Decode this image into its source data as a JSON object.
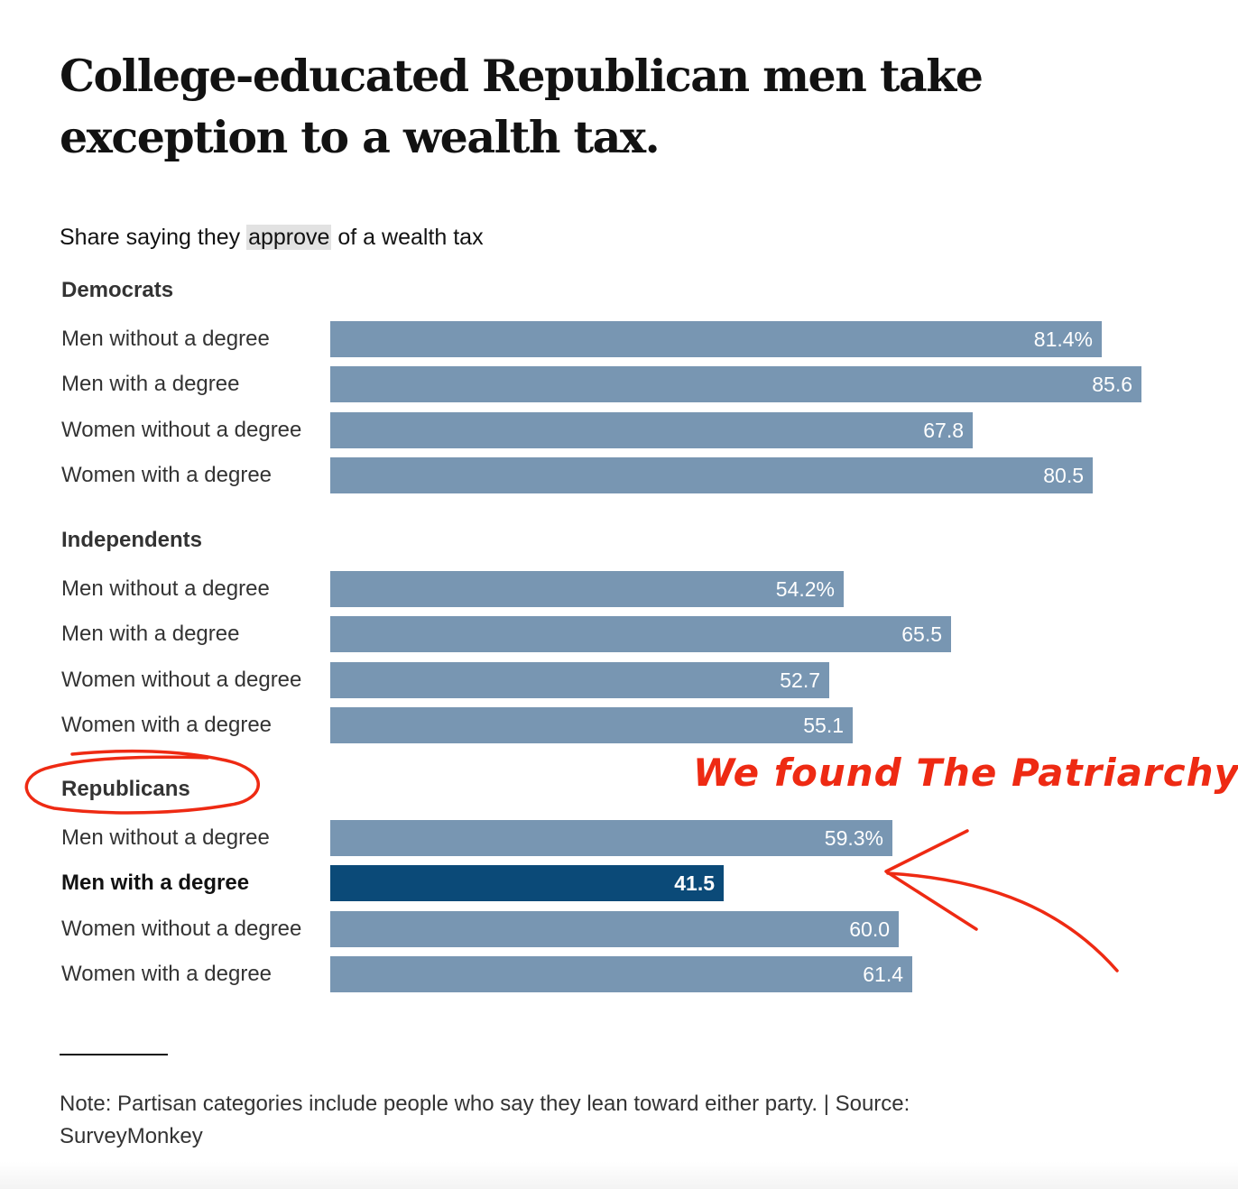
{
  "title": "College-educated Republican men take exception to a wealth tax.",
  "subtitle": {
    "before": "Share saying they ",
    "highlight": "approve",
    "after": " of a wealth tax"
  },
  "chart_data": {
    "type": "bar",
    "orientation": "horizontal",
    "title": "Share saying they approve of a wealth tax",
    "unit": "%",
    "xlim": [
      0,
      100
    ],
    "grid": false,
    "groups": [
      {
        "name": "Democrats",
        "rows": [
          {
            "label": "Men without a degree",
            "value": 81.4,
            "display": "81.4%",
            "highlight": false
          },
          {
            "label": "Men with a degree",
            "value": 85.6,
            "display": "85.6",
            "highlight": false
          },
          {
            "label": "Women without a degree",
            "value": 67.8,
            "display": "67.8",
            "highlight": false
          },
          {
            "label": "Women with a degree",
            "value": 80.5,
            "display": "80.5",
            "highlight": false
          }
        ]
      },
      {
        "name": "Independents",
        "rows": [
          {
            "label": "Men without a degree",
            "value": 54.2,
            "display": "54.2%",
            "highlight": false
          },
          {
            "label": "Men with a degree",
            "value": 65.5,
            "display": "65.5",
            "highlight": false
          },
          {
            "label": "Women without a degree",
            "value": 52.7,
            "display": "52.7",
            "highlight": false
          },
          {
            "label": "Women with a degree",
            "value": 55.1,
            "display": "55.1",
            "highlight": false
          }
        ]
      },
      {
        "name": "Republicans",
        "rows": [
          {
            "label": "Men without a degree",
            "value": 59.3,
            "display": "59.3%",
            "highlight": false
          },
          {
            "label": "Men with a degree",
            "value": 41.5,
            "display": "41.5",
            "highlight": true
          },
          {
            "label": "Women without a degree",
            "value": 60.0,
            "display": "60.0",
            "highlight": false
          },
          {
            "label": "Women with a degree",
            "value": 61.4,
            "display": "61.4",
            "highlight": false
          }
        ]
      }
    ],
    "colors": {
      "bar": "#7896b2",
      "highlight": "#0b4a78"
    }
  },
  "annotation": {
    "text": "We found The Patriarchy",
    "color": "#ee2a13"
  },
  "note": "Note: Partisan categories include people who say they lean toward either party. | Source: SurveyMonkey"
}
